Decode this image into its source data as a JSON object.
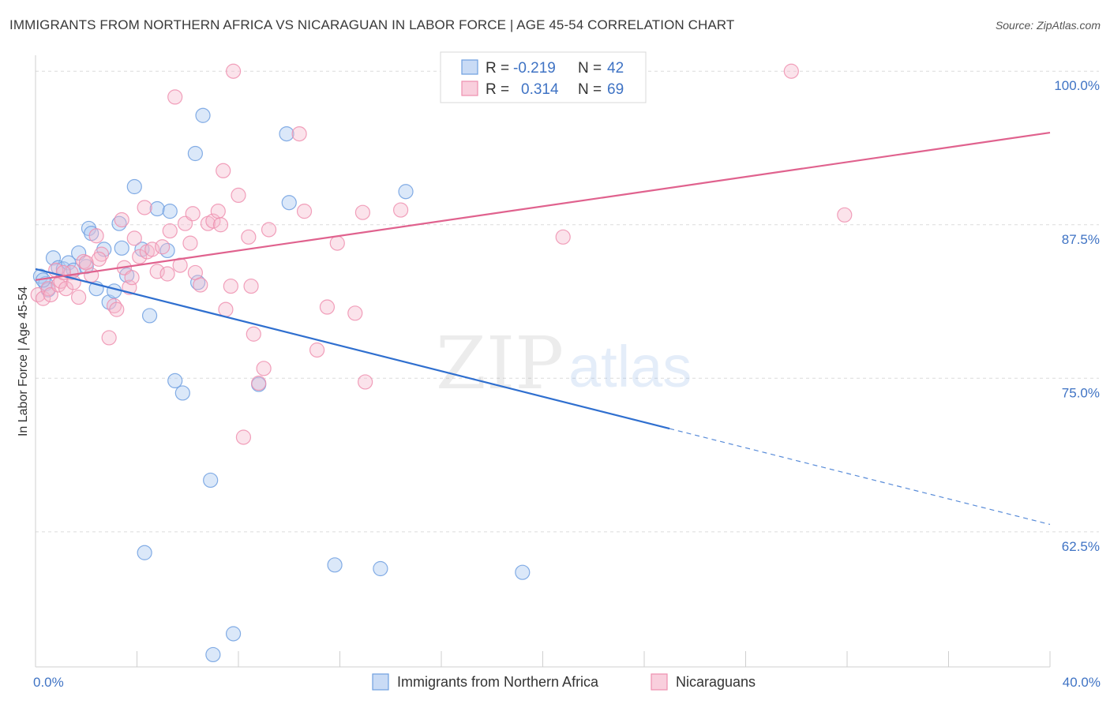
{
  "header": {
    "title": "IMMIGRANTS FROM NORTHERN AFRICA VS NICARAGUAN IN LABOR FORCE | AGE 45-54 CORRELATION CHART",
    "source": "Source: ZipAtlas.com"
  },
  "watermark": {
    "zip": "ZIP",
    "atlas": "atlas"
  },
  "legend": {
    "rows": [
      {
        "r_label": "R =",
        "r_value": "-0.219",
        "n_label": "N =",
        "n_value": "42",
        "color": "#6f9fe0"
      },
      {
        "r_label": "R =",
        "r_value": "0.314",
        "n_label": "N =",
        "n_value": "69",
        "color": "#ee8faf"
      }
    ]
  },
  "bottom_legend": [
    {
      "label": "Immigrants from Northern Africa",
      "color": "#6f9fe0"
    },
    {
      "label": "Nicaraguans",
      "color": "#ee8faf"
    }
  ],
  "chart_data": {
    "type": "scatter",
    "xlabel": "",
    "ylabel": "In Labor Force | Age 45-54",
    "xlim": [
      0,
      40
    ],
    "ylim": [
      51.5,
      101.3
    ],
    "x_tick_labels": [
      {
        "value": 0,
        "label": "0.0%"
      },
      {
        "value": 40,
        "label": "40.0%"
      }
    ],
    "x_minor_ticks": [
      0,
      4,
      8,
      12,
      16,
      20,
      24,
      28,
      32,
      36,
      40
    ],
    "y_ticks": [
      {
        "value": 100,
        "label": "100.0%"
      },
      {
        "value": 87.5,
        "label": "87.5%"
      },
      {
        "value": 75,
        "label": "75.0%"
      },
      {
        "value": 62.5,
        "label": "62.5%"
      }
    ],
    "grid": true,
    "legend_position": "top-center",
    "series": [
      {
        "name": "Immigrants from Northern Africa",
        "color": "#6f9fe0",
        "points": [
          [
            0.2,
            83.3
          ],
          [
            0.4,
            82.7
          ],
          [
            0.5,
            82.2
          ],
          [
            0.7,
            84.8
          ],
          [
            0.9,
            84.0
          ],
          [
            1.1,
            83.9
          ],
          [
            1.3,
            84.4
          ],
          [
            1.5,
            83.8
          ],
          [
            1.7,
            85.2
          ],
          [
            2.1,
            87.2
          ],
          [
            2.2,
            86.8
          ],
          [
            2.4,
            82.3
          ],
          [
            2.7,
            85.5
          ],
          [
            2.9,
            81.2
          ],
          [
            3.1,
            82.1
          ],
          [
            3.3,
            87.6
          ],
          [
            3.4,
            85.6
          ],
          [
            3.6,
            83.4
          ],
          [
            3.9,
            90.6
          ],
          [
            4.2,
            85.5
          ],
          [
            4.5,
            80.1
          ],
          [
            4.8,
            88.8
          ],
          [
            5.2,
            85.4
          ],
          [
            5.3,
            88.6
          ],
          [
            5.5,
            74.8
          ],
          [
            5.8,
            73.8
          ],
          [
            6.3,
            93.3
          ],
          [
            6.4,
            82.8
          ],
          [
            6.6,
            96.4
          ],
          [
            6.9,
            66.7
          ],
          [
            7.0,
            52.5
          ],
          [
            7.8,
            54.2
          ],
          [
            8.8,
            74.5
          ],
          [
            9.9,
            94.9
          ],
          [
            10.0,
            89.3
          ],
          [
            11.8,
            59.8
          ],
          [
            13.6,
            59.5
          ],
          [
            14.6,
            90.2
          ],
          [
            19.2,
            59.2
          ],
          [
            4.3,
            60.8
          ],
          [
            2.0,
            84.1
          ],
          [
            0.3,
            83.0
          ]
        ]
      },
      {
        "name": "Nicaraguans",
        "color": "#ee8faf",
        "points": [
          [
            0.1,
            81.8
          ],
          [
            0.3,
            81.5
          ],
          [
            0.5,
            82.3
          ],
          [
            0.6,
            81.8
          ],
          [
            0.8,
            83.8
          ],
          [
            0.9,
            82.6
          ],
          [
            1.0,
            82.9
          ],
          [
            1.2,
            82.3
          ],
          [
            1.4,
            83.6
          ],
          [
            1.5,
            82.8
          ],
          [
            1.7,
            81.6
          ],
          [
            1.9,
            84.5
          ],
          [
            2.0,
            84.4
          ],
          [
            2.2,
            83.4
          ],
          [
            2.4,
            86.6
          ],
          [
            2.6,
            85.1
          ],
          [
            2.9,
            78.3
          ],
          [
            3.1,
            80.9
          ],
          [
            3.2,
            80.6
          ],
          [
            3.4,
            87.9
          ],
          [
            3.5,
            84.0
          ],
          [
            3.7,
            82.4
          ],
          [
            3.9,
            86.4
          ],
          [
            4.1,
            84.9
          ],
          [
            4.3,
            88.9
          ],
          [
            4.4,
            85.3
          ],
          [
            4.6,
            85.5
          ],
          [
            4.8,
            83.7
          ],
          [
            5.0,
            85.7
          ],
          [
            5.2,
            83.5
          ],
          [
            5.3,
            87.0
          ],
          [
            5.5,
            97.9
          ],
          [
            5.7,
            84.2
          ],
          [
            5.9,
            87.6
          ],
          [
            6.1,
            86.0
          ],
          [
            6.3,
            83.6
          ],
          [
            6.5,
            82.6
          ],
          [
            6.8,
            87.6
          ],
          [
            7.0,
            87.8
          ],
          [
            7.2,
            88.6
          ],
          [
            7.4,
            91.9
          ],
          [
            7.5,
            80.6
          ],
          [
            7.7,
            82.5
          ],
          [
            7.8,
            100.0
          ],
          [
            8.0,
            89.9
          ],
          [
            8.2,
            70.2
          ],
          [
            8.4,
            86.5
          ],
          [
            8.5,
            82.5
          ],
          [
            8.6,
            78.6
          ],
          [
            8.8,
            74.6
          ],
          [
            9.0,
            75.8
          ],
          [
            9.2,
            87.1
          ],
          [
            10.4,
            94.9
          ],
          [
            10.6,
            88.6
          ],
          [
            11.1,
            77.3
          ],
          [
            11.5,
            80.8
          ],
          [
            11.9,
            86.0
          ],
          [
            12.6,
            80.3
          ],
          [
            12.9,
            88.5
          ],
          [
            13.0,
            74.7
          ],
          [
            14.4,
            88.7
          ],
          [
            20.8,
            86.5
          ],
          [
            29.8,
            100.0
          ],
          [
            31.9,
            88.3
          ],
          [
            1.1,
            83.6
          ],
          [
            2.5,
            84.7
          ],
          [
            3.8,
            83.2
          ],
          [
            6.2,
            88.4
          ],
          [
            7.3,
            87.5
          ]
        ]
      }
    ],
    "trendlines": [
      {
        "series": "Immigrants from Northern Africa",
        "x_start": 0,
        "y_start": 83.9,
        "x_solid_end": 25,
        "x_end": 40,
        "y_end": 63.1
      },
      {
        "series": "Nicaraguans",
        "x_start": 0,
        "y_start": 83.0,
        "x_end": 40,
        "y_end": 95.0
      }
    ]
  }
}
